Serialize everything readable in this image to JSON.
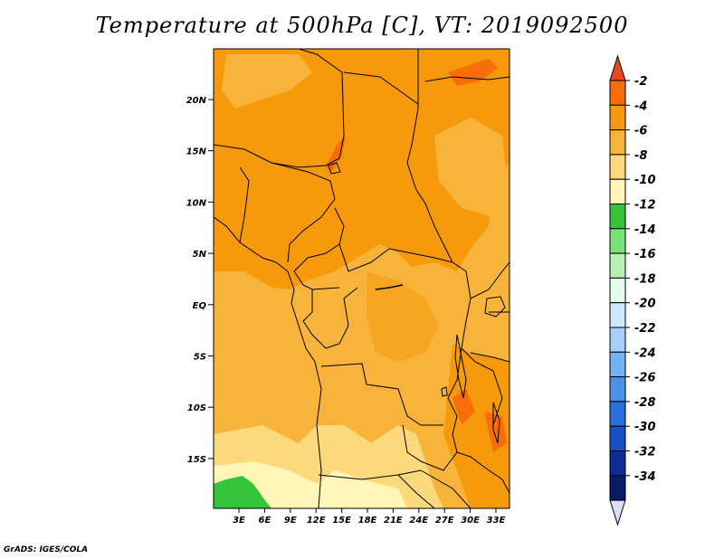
{
  "title": "Temperature at 500hPa [C], VT: 2019092500",
  "credit": "GrADS: IGES/COLA",
  "map": {
    "lat_ticks": [
      "20N",
      "15N",
      "10N",
      "5N",
      "EQ",
      "5S",
      "10S",
      "15S"
    ],
    "lon_ticks": [
      "3E",
      "6E",
      "9E",
      "12E",
      "15E",
      "18E",
      "21E",
      "24E",
      "27E",
      "30E",
      "33E"
    ]
  },
  "colorbar": {
    "labels": [
      "-2",
      "-4",
      "-6",
      "-8",
      "-10",
      "-12",
      "-14",
      "-16",
      "-18",
      "-20",
      "-22",
      "-24",
      "-26",
      "-28",
      "-30",
      "-32",
      "-34"
    ],
    "colors": [
      "#e8491c",
      "#f66d0a",
      "#f69a0b",
      "#f8b43a",
      "#fcd97a",
      "#fff6b8",
      "#33c43a",
      "#7ae07a",
      "#b6f0b0",
      "#e6fbef",
      "#cfe8fb",
      "#a3cffa",
      "#75b2f5",
      "#4c92ed",
      "#2a6fe0",
      "#174fc4",
      "#0d2d94",
      "#0a1a6a",
      "#dcdcf5"
    ]
  },
  "legend_names": {
    "arrow_top": "warm-end-arrow",
    "arrow_bottom": "cold-end-arrow"
  }
}
